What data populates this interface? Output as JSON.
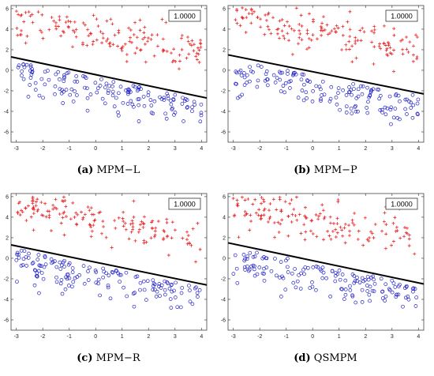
{
  "chart_data": [
    {
      "type": "scatter",
      "label": "(a)",
      "method": "MPM−L",
      "accuracy": "1.0000",
      "xlim": [
        -3.2,
        4.2
      ],
      "ylim": [
        -7,
        6.3
      ],
      "xticks": [
        -3,
        -2,
        -1,
        0,
        1,
        2,
        3,
        4
      ],
      "yticks": [
        -6,
        -4,
        -2,
        0,
        2,
        4,
        6
      ],
      "boundary": {
        "x": [
          -3.2,
          4.2
        ],
        "y": [
          1.3,
          -2.7
        ]
      },
      "series": [
        {
          "marker": "plus",
          "color": "#e8282a",
          "seed": 11
        },
        {
          "marker": "circle",
          "color": "#2323c8",
          "seed": 23
        }
      ]
    },
    {
      "type": "scatter",
      "label": "(b)",
      "method": "MPM−P",
      "accuracy": "1.0000",
      "xlim": [
        -3.2,
        4.2
      ],
      "ylim": [
        -7,
        6.3
      ],
      "xticks": [
        -3,
        -2,
        -1,
        0,
        1,
        2,
        3,
        4
      ],
      "yticks": [
        -6,
        -4,
        -2,
        0,
        2,
        4,
        6
      ],
      "boundary": {
        "x": [
          -3.2,
          4.2
        ],
        "y": [
          1.5,
          -2.3
        ]
      },
      "series": [
        {
          "marker": "plus",
          "color": "#e8282a",
          "seed": 37
        },
        {
          "marker": "circle",
          "color": "#2323c8",
          "seed": 41
        }
      ]
    },
    {
      "type": "scatter",
      "label": "(c)",
      "method": "MPM−R",
      "accuracy": "1.0000",
      "xlim": [
        -3.2,
        4.2
      ],
      "ylim": [
        -7,
        6.3
      ],
      "xticks": [
        -3,
        -2,
        -1,
        0,
        1,
        2,
        3,
        4
      ],
      "yticks": [
        -6,
        -4,
        -2,
        0,
        2,
        4,
        6
      ],
      "boundary": {
        "x": [
          -3.2,
          4.2
        ],
        "y": [
          1.3,
          -2.6
        ]
      },
      "series": [
        {
          "marker": "plus",
          "color": "#e8282a",
          "seed": 53
        },
        {
          "marker": "circle",
          "color": "#2323c8",
          "seed": 59
        }
      ]
    },
    {
      "type": "scatter",
      "label": "(d)",
      "method": "QSMPM",
      "accuracy": "1.0000",
      "xlim": [
        -3.2,
        4.2
      ],
      "ylim": [
        -7,
        6.3
      ],
      "xticks": [
        -3,
        -2,
        -1,
        0,
        1,
        2,
        3,
        4
      ],
      "yticks": [
        -6,
        -4,
        -2,
        0,
        2,
        4,
        6
      ],
      "boundary": {
        "x": [
          -3.2,
          4.2
        ],
        "y": [
          1.5,
          -2.5
        ]
      },
      "series": [
        {
          "marker": "plus",
          "color": "#e8282a",
          "seed": 67
        },
        {
          "marker": "circle",
          "color": "#2323c8",
          "seed": 71
        }
      ]
    }
  ]
}
